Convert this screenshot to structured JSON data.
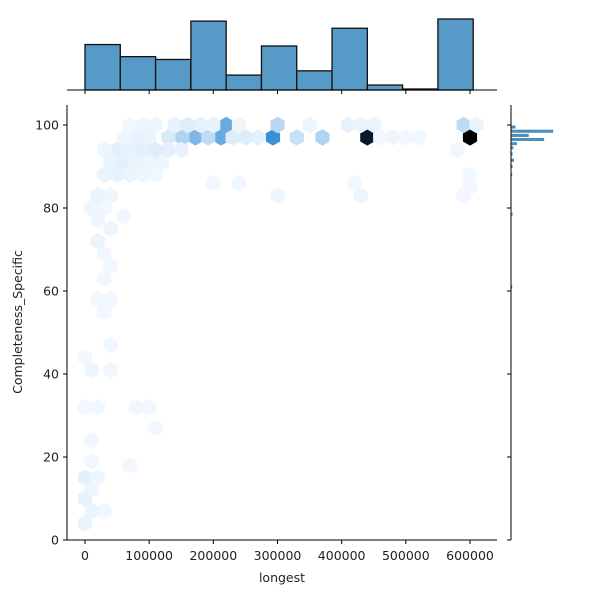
{
  "chart_data": {
    "type": "hexbin-jointplot",
    "xlabel": "longest",
    "ylabel": "Completeness_Specific",
    "xlim": [
      -30000,
      640000
    ],
    "ylim": [
      0,
      105
    ],
    "x_ticks": [
      0,
      100000,
      200000,
      300000,
      400000,
      500000,
      600000
    ],
    "x_tick_labels": [
      "0",
      "100000",
      "200000",
      "300000",
      "400000",
      "500000",
      "600000"
    ],
    "y_ticks": [
      0,
      20,
      40,
      60,
      80,
      100
    ],
    "y_tick_labels": [
      "0",
      "20",
      "40",
      "60",
      "80",
      "100"
    ],
    "color": "#3a87c8",
    "marginal_x_hist": {
      "bin_edges": [
        0,
        55000,
        110000,
        165000,
        220000,
        275000,
        330000,
        385000,
        440000,
        495000,
        550000,
        605000
      ],
      "relative_heights": [
        0.64,
        0.47,
        0.43,
        0.97,
        0.21,
        0.62,
        0.27,
        0.87,
        0.07,
        0.01,
        1.0
      ]
    },
    "marginal_y_hist": {
      "description": "Thin horizontal bars concentrated near 95-100",
      "bins": [
        {
          "y": 99.5,
          "w": 0.06
        },
        {
          "y": 98.5,
          "w": 0.6
        },
        {
          "y": 97.5,
          "w": 0.25
        },
        {
          "y": 96.5,
          "w": 0.47
        },
        {
          "y": 95.5,
          "w": 0.08
        },
        {
          "y": 94.5,
          "w": 0.03
        },
        {
          "y": 93.0,
          "w": 0.02
        },
        {
          "y": 91.5,
          "w": 0.04
        },
        {
          "y": 90.0,
          "w": 0.02
        },
        {
          "y": 88.0,
          "w": 0.01
        },
        {
          "y": 78.5,
          "w": 0.02
        },
        {
          "y": 61.0,
          "w": 0.01
        }
      ]
    },
    "hexbins": [
      {
        "x": 600000,
        "y": 97,
        "level": 1.0
      },
      {
        "x": 440000,
        "y": 97,
        "level": 0.92
      },
      {
        "x": 293000,
        "y": 97,
        "level": 0.6
      },
      {
        "x": 220000,
        "y": 100,
        "level": 0.45
      },
      {
        "x": 212000,
        "y": 97,
        "level": 0.45
      },
      {
        "x": 172000,
        "y": 97,
        "level": 0.38
      },
      {
        "x": 370000,
        "y": 97,
        "level": 0.22
      },
      {
        "x": 590000,
        "y": 100,
        "level": 0.18
      },
      {
        "x": 300000,
        "y": 100,
        "level": 0.2
      },
      {
        "x": 152000,
        "y": 97,
        "level": 0.22
      },
      {
        "x": 330000,
        "y": 97,
        "level": 0.15
      },
      {
        "x": 192000,
        "y": 97,
        "level": 0.18
      },
      {
        "x": 130000,
        "y": 97,
        "level": 0.1
      },
      {
        "x": 250000,
        "y": 97,
        "level": 0.08
      },
      {
        "x": 270000,
        "y": 97,
        "level": 0.06
      },
      {
        "x": 230000,
        "y": 97,
        "level": 0.08
      },
      {
        "x": 140000,
        "y": 100,
        "level": 0.05
      },
      {
        "x": 180000,
        "y": 100,
        "level": 0.06
      },
      {
        "x": 160000,
        "y": 100,
        "level": 0.08
      },
      {
        "x": 200000,
        "y": 100,
        "level": 0.05
      },
      {
        "x": 410000,
        "y": 100,
        "level": 0.05
      },
      {
        "x": 430000,
        "y": 100,
        "level": 0.04
      },
      {
        "x": 450000,
        "y": 100,
        "level": 0.04
      },
      {
        "x": 240000,
        "y": 100,
        "level": 0.03
      },
      {
        "x": 350000,
        "y": 100,
        "level": 0.03
      },
      {
        "x": 110000,
        "y": 100,
        "level": 0.03
      },
      {
        "x": 90000,
        "y": 100,
        "level": 0.03
      },
      {
        "x": 70000,
        "y": 100,
        "level": 0.02
      },
      {
        "x": 80000,
        "y": 97,
        "level": 0.05
      },
      {
        "x": 100000,
        "y": 97,
        "level": 0.04
      },
      {
        "x": 60000,
        "y": 97,
        "level": 0.03
      },
      {
        "x": 480000,
        "y": 97,
        "level": 0.03
      },
      {
        "x": 500000,
        "y": 97,
        "level": 0.02
      },
      {
        "x": 520000,
        "y": 97,
        "level": 0.02
      },
      {
        "x": 460000,
        "y": 97,
        "level": 0.02
      },
      {
        "x": 610000,
        "y": 100,
        "level": 0.04
      },
      {
        "x": 50000,
        "y": 94,
        "level": 0.06
      },
      {
        "x": 70000,
        "y": 94,
        "level": 0.05
      },
      {
        "x": 90000,
        "y": 94,
        "level": 0.06
      },
      {
        "x": 110000,
        "y": 94,
        "level": 0.08
      },
      {
        "x": 130000,
        "y": 94,
        "level": 0.06
      },
      {
        "x": 150000,
        "y": 94,
        "level": 0.05
      },
      {
        "x": 30000,
        "y": 94,
        "level": 0.03
      },
      {
        "x": 580000,
        "y": 94,
        "level": 0.02
      },
      {
        "x": 40000,
        "y": 91,
        "level": 0.04
      },
      {
        "x": 60000,
        "y": 91,
        "level": 0.06
      },
      {
        "x": 80000,
        "y": 91,
        "level": 0.04
      },
      {
        "x": 100000,
        "y": 91,
        "level": 0.03
      },
      {
        "x": 120000,
        "y": 91,
        "level": 0.03
      },
      {
        "x": 30000,
        "y": 88,
        "level": 0.04
      },
      {
        "x": 50000,
        "y": 88,
        "level": 0.05
      },
      {
        "x": 70000,
        "y": 88,
        "level": 0.04
      },
      {
        "x": 90000,
        "y": 88,
        "level": 0.03
      },
      {
        "x": 110000,
        "y": 88,
        "level": 0.02
      },
      {
        "x": 200000,
        "y": 86,
        "level": 0.02
      },
      {
        "x": 240000,
        "y": 86,
        "level": 0.02
      },
      {
        "x": 600000,
        "y": 88,
        "level": 0.02
      },
      {
        "x": 600000,
        "y": 85,
        "level": 0.02
      },
      {
        "x": 420000,
        "y": 86,
        "level": 0.02
      },
      {
        "x": 20000,
        "y": 83,
        "level": 0.04
      },
      {
        "x": 40000,
        "y": 83,
        "level": 0.03
      },
      {
        "x": 300000,
        "y": 83,
        "level": 0.03
      },
      {
        "x": 430000,
        "y": 83,
        "level": 0.03
      },
      {
        "x": 590000,
        "y": 83,
        "level": 0.02
      },
      {
        "x": 10000,
        "y": 80,
        "level": 0.03
      },
      {
        "x": 30000,
        "y": 80,
        "level": 0.02
      },
      {
        "x": 60000,
        "y": 78,
        "level": 0.02
      },
      {
        "x": 20000,
        "y": 77,
        "level": 0.03
      },
      {
        "x": 40000,
        "y": 75,
        "level": 0.03
      },
      {
        "x": 20000,
        "y": 72,
        "level": 0.04
      },
      {
        "x": 30000,
        "y": 69,
        "level": 0.02
      },
      {
        "x": 40000,
        "y": 66,
        "level": 0.02
      },
      {
        "x": 30000,
        "y": 63,
        "level": 0.02
      },
      {
        "x": 20000,
        "y": 58,
        "level": 0.02
      },
      {
        "x": 40000,
        "y": 58,
        "level": 0.02
      },
      {
        "x": 30000,
        "y": 55,
        "level": 0.02
      },
      {
        "x": 40000,
        "y": 47,
        "level": 0.02
      },
      {
        "x": 0,
        "y": 44,
        "level": 0.02
      },
      {
        "x": 10000,
        "y": 41,
        "level": 0.03
      },
      {
        "x": 40000,
        "y": 41,
        "level": 0.02
      },
      {
        "x": 0,
        "y": 32,
        "level": 0.02
      },
      {
        "x": 20000,
        "y": 32,
        "level": 0.02
      },
      {
        "x": 80000,
        "y": 32,
        "level": 0.02
      },
      {
        "x": 100000,
        "y": 32,
        "level": 0.02
      },
      {
        "x": 110000,
        "y": 27,
        "level": 0.02
      },
      {
        "x": 10000,
        "y": 24,
        "level": 0.02
      },
      {
        "x": 10000,
        "y": 19,
        "level": 0.02
      },
      {
        "x": 70000,
        "y": 18,
        "level": 0.02
      },
      {
        "x": 0,
        "y": 15,
        "level": 0.06
      },
      {
        "x": 20000,
        "y": 15,
        "level": 0.03
      },
      {
        "x": 10000,
        "y": 12,
        "level": 0.03
      },
      {
        "x": 0,
        "y": 10,
        "level": 0.05
      },
      {
        "x": 10000,
        "y": 7,
        "level": 0.04
      },
      {
        "x": 30000,
        "y": 7,
        "level": 0.02
      },
      {
        "x": 0,
        "y": 4,
        "level": 0.04
      }
    ]
  }
}
